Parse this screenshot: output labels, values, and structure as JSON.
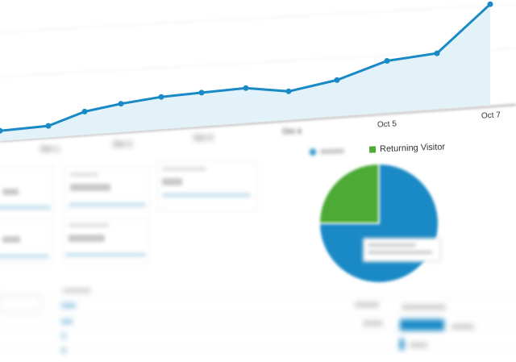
{
  "chart_data": [
    {
      "type": "area",
      "x_tick_labels": [
        "",
        "",
        "",
        "Oct 5",
        "Oct 7"
      ],
      "x_tick_labels_legible": [
        "Oct 5",
        "Oct 7"
      ],
      "values": [
        8,
        9,
        18,
        22,
        25,
        26,
        27,
        22,
        28,
        40,
        43,
        78
      ],
      "grid": true,
      "legend": "none",
      "colors": {
        "line": "#1a8ac6",
        "fill": "#e3f1f9"
      }
    },
    {
      "type": "pie",
      "legend": "top",
      "series": [
        {
          "name": "",
          "value": 75,
          "color": "#1a8ac6"
        },
        {
          "name": "Returning Visitor",
          "value": 25,
          "color": "#4caa35"
        }
      ]
    }
  ],
  "legend": {
    "returning_visitor": "Returning Visitor"
  },
  "axis": {
    "oct5": "Oct 5",
    "oct7": "Oct 7"
  }
}
